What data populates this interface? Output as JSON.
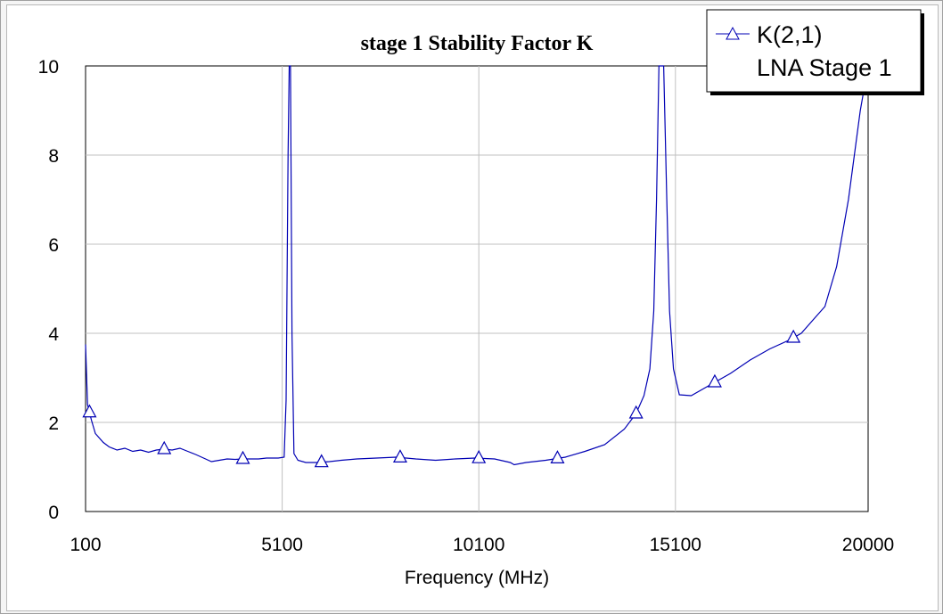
{
  "chart_data": {
    "type": "line",
    "title": "stage 1 Stability Factor K",
    "xlabel": "Frequency (MHz)",
    "ylabel": "",
    "xlim": [
      100,
      20000
    ],
    "ylim": [
      0,
      10
    ],
    "x_ticks": [
      "100",
      "5100",
      "10100",
      "15100",
      "20000"
    ],
    "y_ticks": [
      "0",
      "2",
      "4",
      "6",
      "8",
      "10"
    ],
    "grid": true,
    "legend": {
      "placement": "top-right",
      "entries": [
        "K(2,1)",
        "LNA Stage 1"
      ]
    },
    "series": [
      {
        "name": "K(2,1)",
        "subtitle": "LNA Stage 1",
        "color": "#0000b4",
        "marker": "triangle",
        "x": [
          100,
          150,
          250,
          350,
          550,
          700,
          900,
          1100,
          1300,
          1500,
          1700,
          1900,
          2100,
          2300,
          2500,
          2700,
          2900,
          3100,
          3300,
          3500,
          3700,
          3900,
          4100,
          4300,
          4500,
          4700,
          4900,
          5000,
          5150,
          5200,
          5250,
          5280,
          5310,
          5350,
          5400,
          5500,
          5700,
          6000,
          6300,
          6600,
          7000,
          7500,
          8000,
          8500,
          9000,
          9500,
          10000,
          10500,
          10900,
          11000,
          11300,
          11800,
          12300,
          12800,
          13300,
          13800,
          14100,
          14300,
          14450,
          14550,
          14620,
          14680,
          14720,
          14800,
          14880,
          14950,
          15050,
          15200,
          15500,
          16000,
          16500,
          17000,
          17500,
          18000,
          18300,
          18600,
          18900,
          19200,
          19500,
          19800,
          20000
        ],
        "y": [
          3.75,
          2.4,
          2.05,
          1.75,
          1.55,
          1.45,
          1.38,
          1.42,
          1.35,
          1.38,
          1.33,
          1.38,
          1.4,
          1.38,
          1.42,
          1.35,
          1.28,
          1.2,
          1.12,
          1.15,
          1.18,
          1.17,
          1.18,
          1.18,
          1.18,
          1.2,
          1.2,
          1.2,
          1.22,
          2.5,
          8.0,
          10.0,
          10.0,
          4.0,
          1.3,
          1.15,
          1.1,
          1.1,
          1.12,
          1.15,
          1.18,
          1.2,
          1.22,
          1.18,
          1.15,
          1.18,
          1.2,
          1.18,
          1.1,
          1.05,
          1.1,
          1.15,
          1.22,
          1.35,
          1.5,
          1.85,
          2.2,
          2.6,
          3.2,
          4.5,
          7.0,
          10.0,
          10.0,
          10.0,
          7.0,
          4.5,
          3.2,
          2.62,
          2.6,
          2.85,
          3.1,
          3.4,
          3.65,
          3.85,
          4.0,
          4.3,
          4.6,
          5.5,
          7.0,
          9.0,
          10.0
        ],
        "markers_x": [
          200,
          2100,
          4100,
          6100,
          8100,
          10100,
          12100,
          14100,
          16100,
          18100
        ]
      }
    ]
  }
}
